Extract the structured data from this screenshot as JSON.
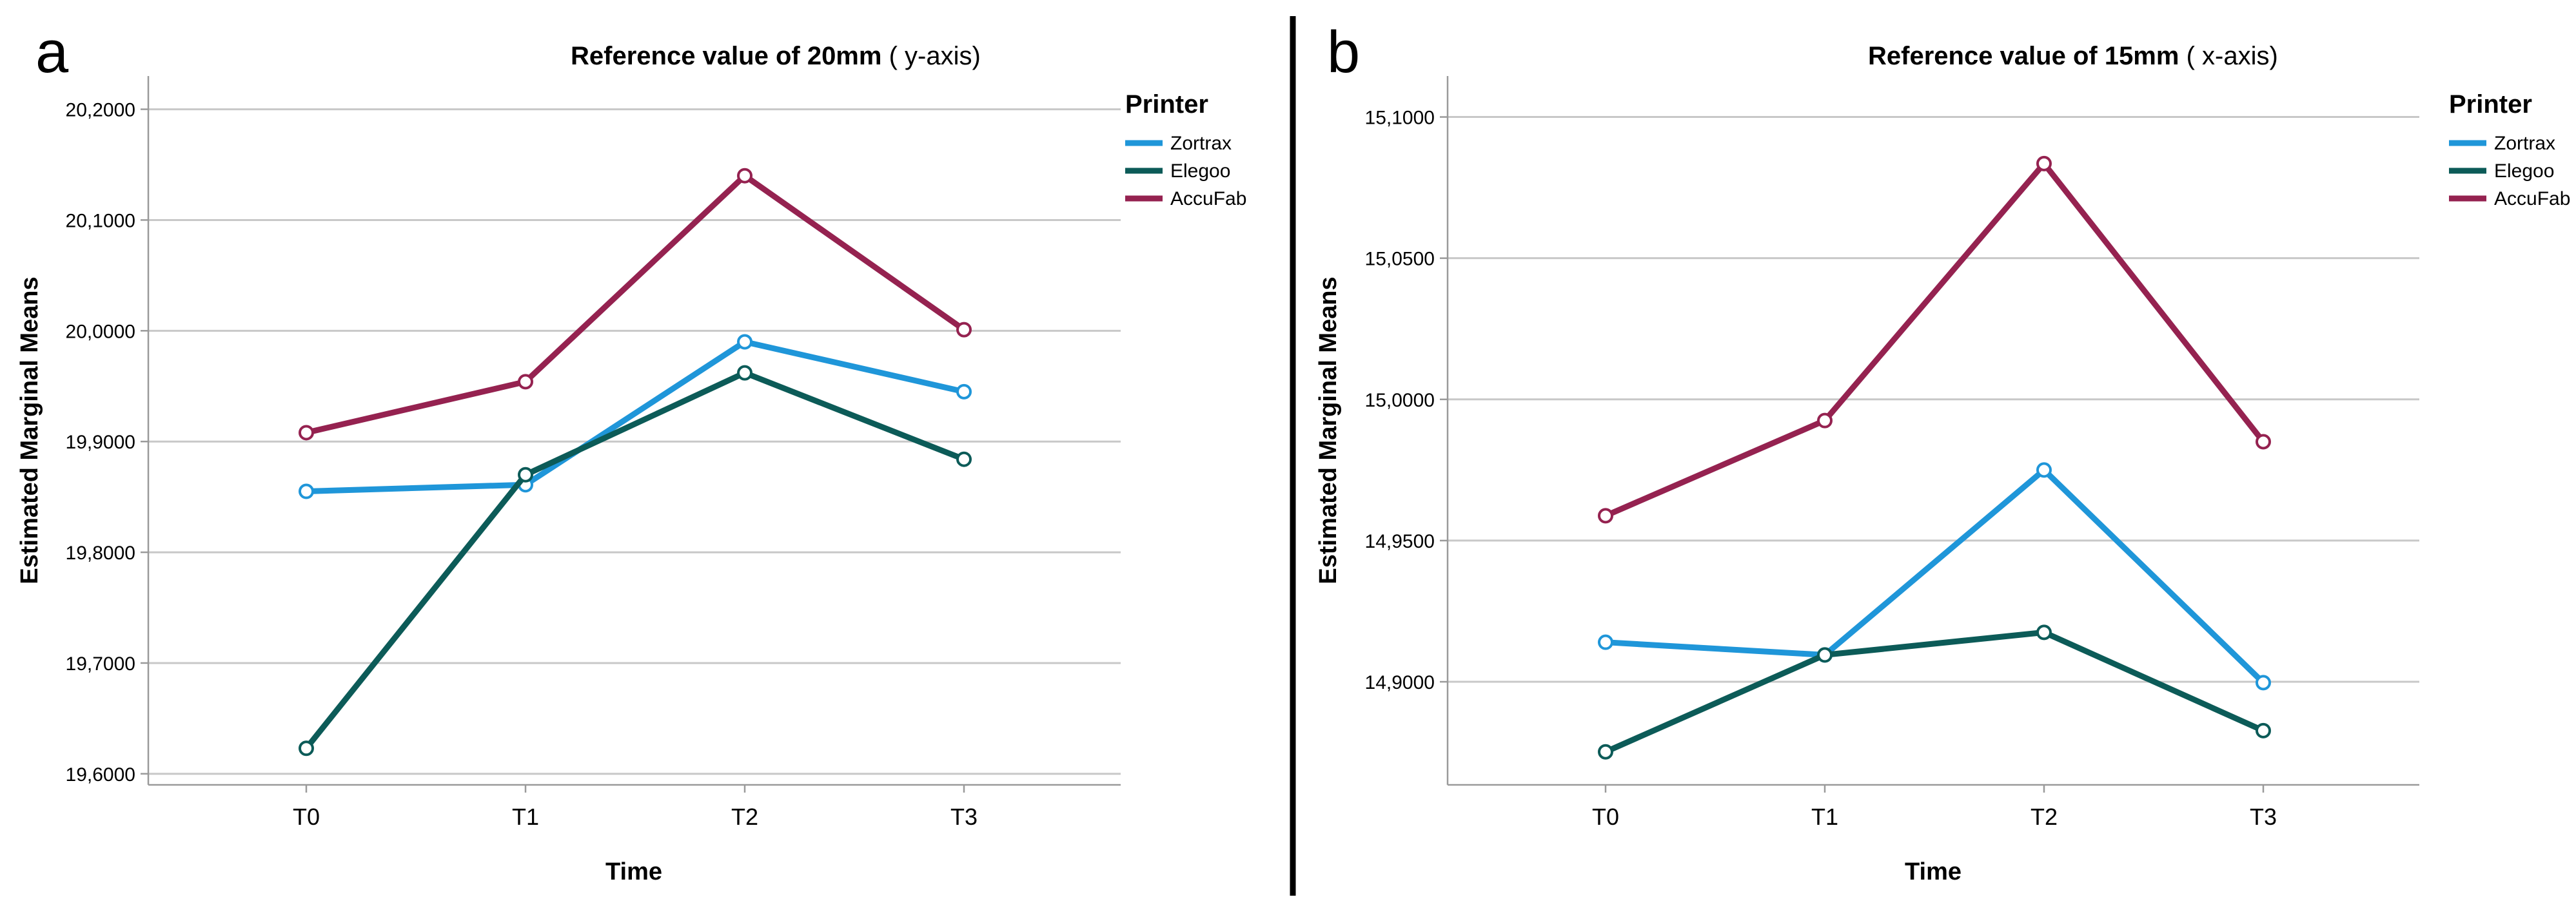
{
  "figure": {
    "panels": [
      {
        "letter": "a",
        "title_bold": "Reference value of 20mm",
        "title_normal": " ( y-axis)"
      },
      {
        "letter": "b",
        "title_bold": "Reference value of 15mm",
        "title_normal": " ( x-axis)"
      }
    ]
  },
  "chart_data": [
    {
      "type": "line",
      "title": "Reference value of 20mm ( y-axis)",
      "xlabel": "Time",
      "ylabel": "Estimated Marginal Means",
      "categories": [
        "T0",
        "T1",
        "T2",
        "T3"
      ],
      "ylim": [
        19.59,
        20.23
      ],
      "yticks": [
        19.6,
        19.7,
        19.8,
        19.9,
        20.0,
        20.1,
        20.2
      ],
      "ytick_labels": [
        "19,6000",
        "19,7000",
        "19,8000",
        "19,9000",
        "20,0000",
        "20,1000",
        "20,2000"
      ],
      "grid": true,
      "legend": {
        "title": "Printer",
        "position": "right"
      },
      "series": [
        {
          "name": "Zortrax",
          "color": "#1f96d9",
          "values": [
            19.855,
            19.861,
            19.99,
            19.945
          ]
        },
        {
          "name": "Elegoo",
          "color": "#0c5b58",
          "values": [
            19.623,
            19.87,
            19.962,
            19.884
          ]
        },
        {
          "name": "AccuFab",
          "color": "#952250",
          "values": [
            19.908,
            19.954,
            20.14,
            20.001
          ]
        }
      ]
    },
    {
      "type": "line",
      "title": "Reference value of 15mm ( x-axis)",
      "xlabel": "Time",
      "ylabel": "Estimated Marginal Means",
      "categories": [
        "T0",
        "T1",
        "T2",
        "T3"
      ],
      "ylim": [
        14.8635,
        15.1145
      ],
      "yticks": [
        14.9,
        14.95,
        15.0,
        15.05,
        15.1
      ],
      "ytick_labels": [
        "14,9000",
        "14,9500",
        "15,0000",
        "15,0500",
        "15,1000"
      ],
      "grid": true,
      "legend": {
        "title": "Printer",
        "position": "right"
      },
      "series": [
        {
          "name": "Zortrax",
          "color": "#1f96d9",
          "values": [
            14.914,
            14.9095,
            14.975,
            14.8997
          ]
        },
        {
          "name": "Elegoo",
          "color": "#0c5b58",
          "values": [
            14.8752,
            14.9095,
            14.9175,
            14.8827
          ]
        },
        {
          "name": "AccuFab",
          "color": "#952250",
          "values": [
            14.9588,
            14.9925,
            15.0835,
            14.985
          ]
        }
      ]
    }
  ]
}
